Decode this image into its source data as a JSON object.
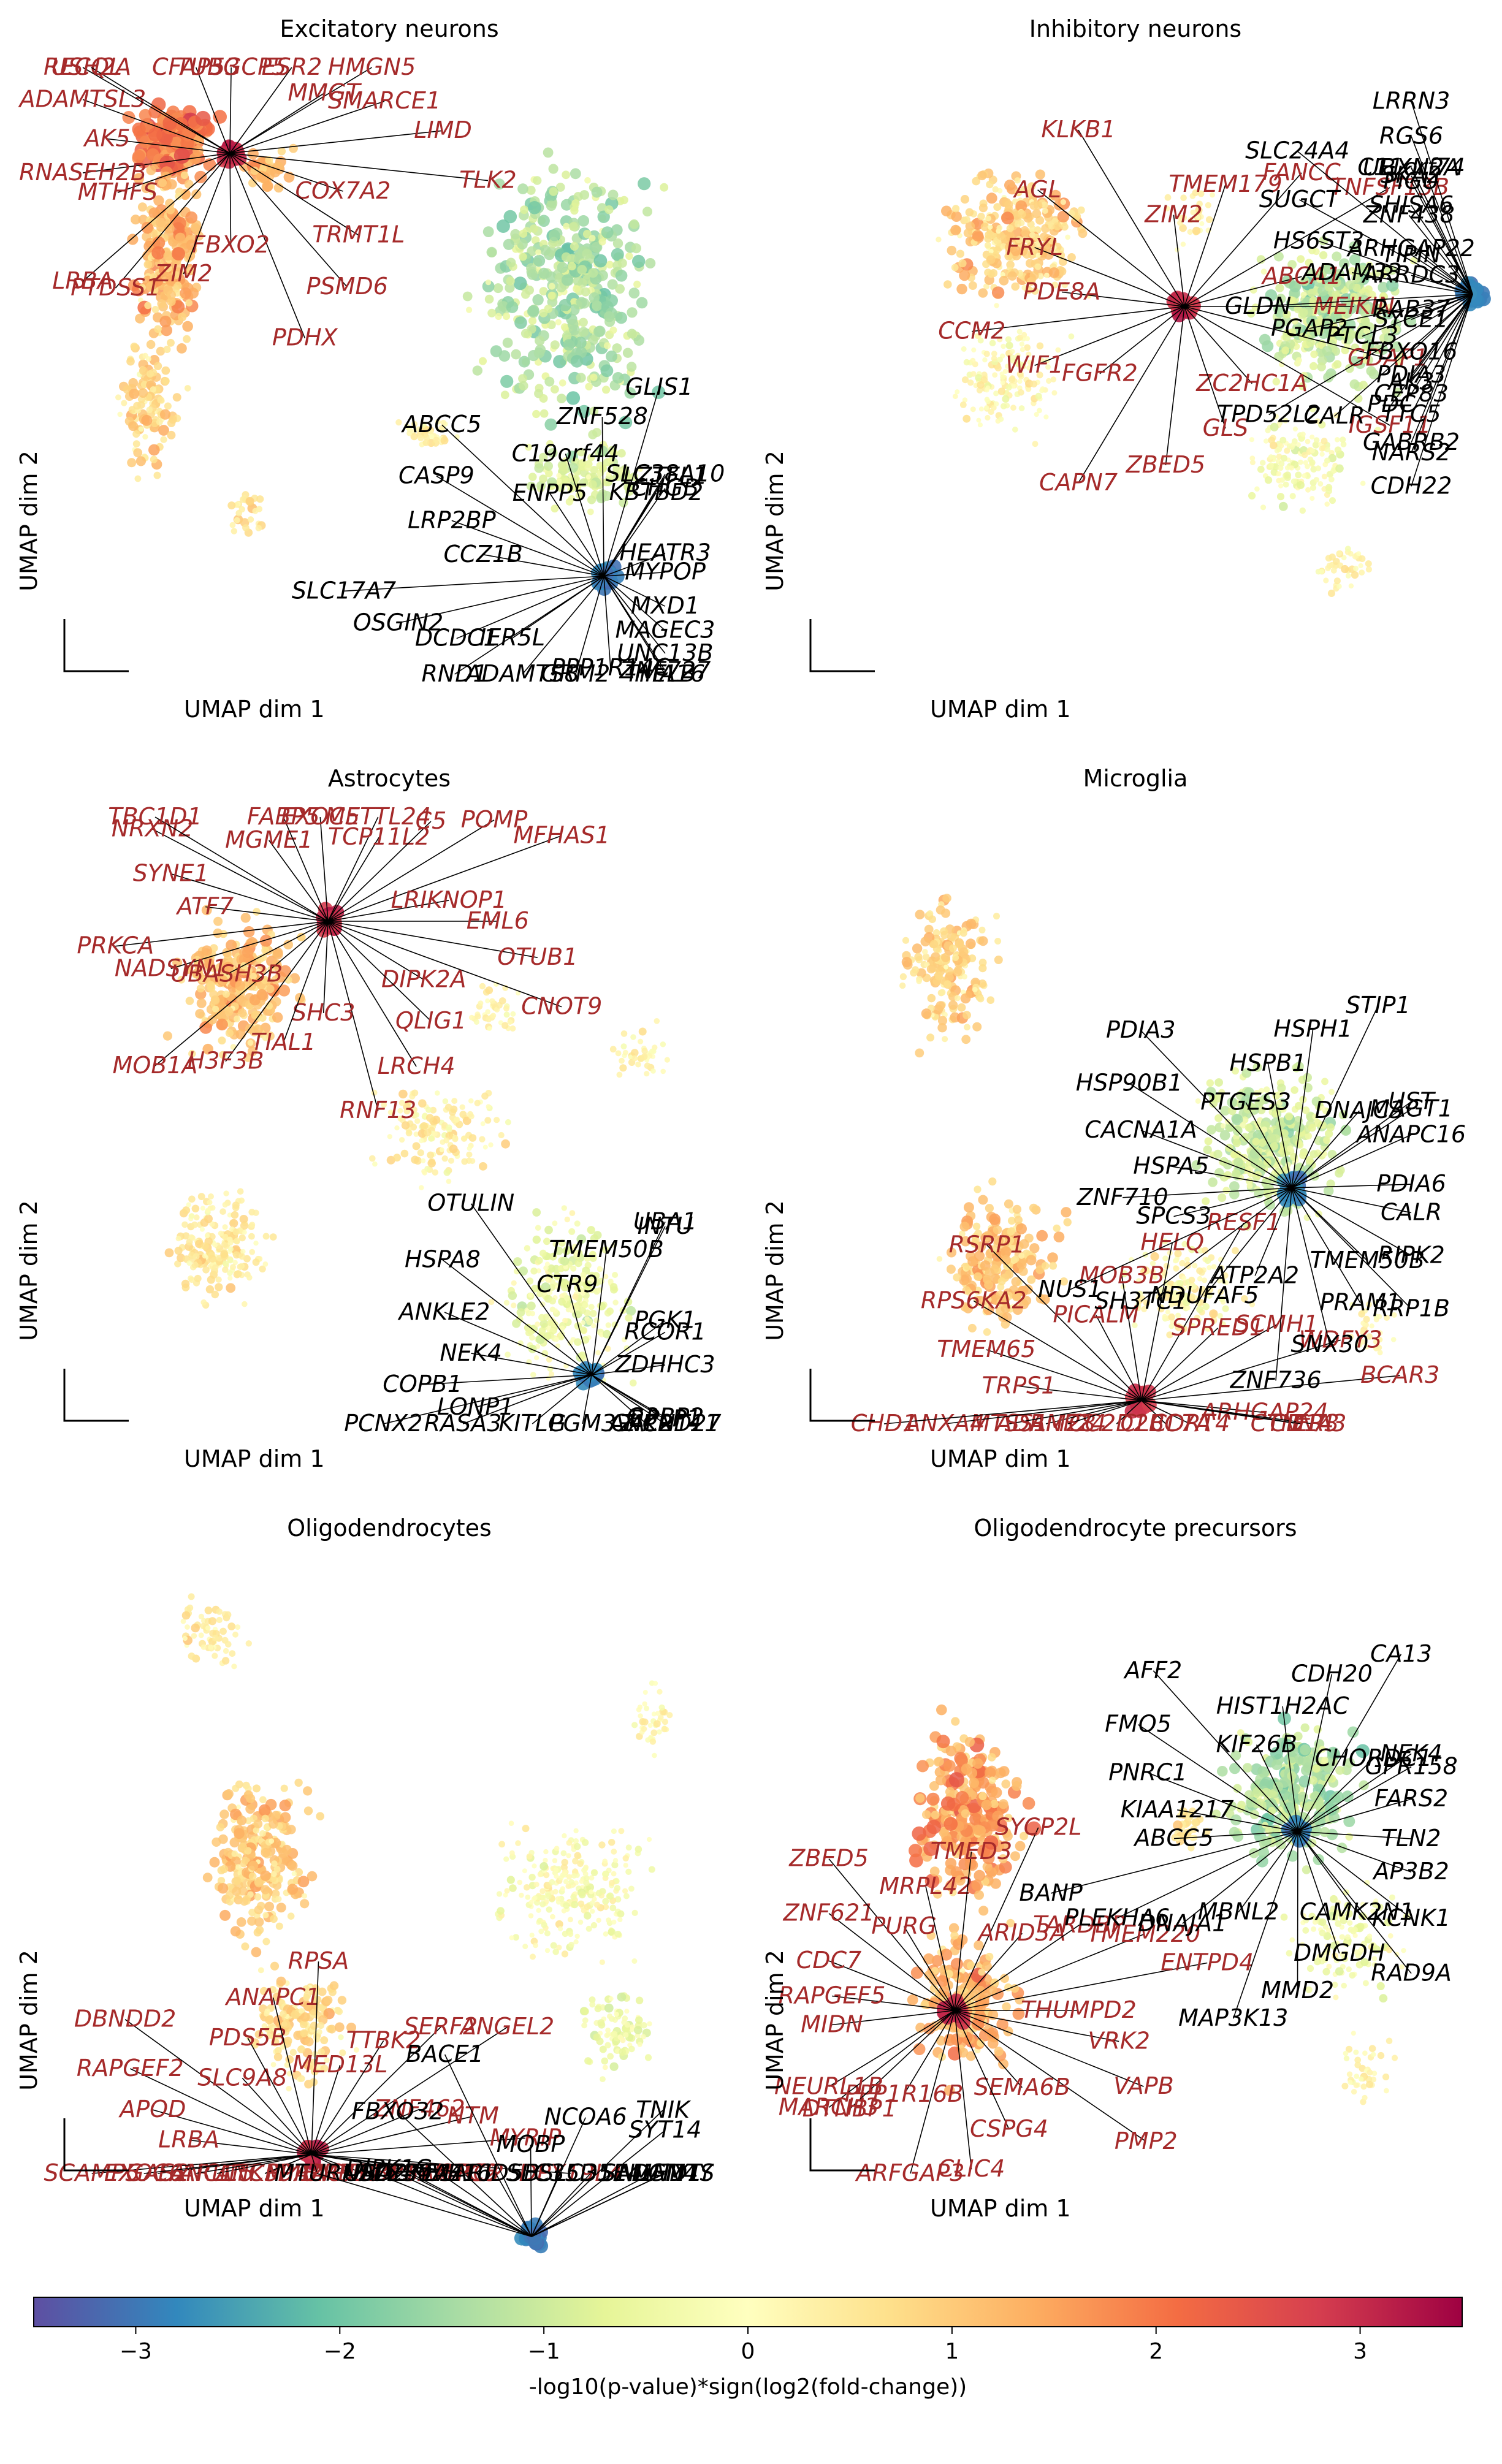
{
  "colors": {
    "up_label": "#a52a2a",
    "down_label": "#000000",
    "line": "#000000"
  },
  "colorbar": {
    "label": "-log10(p-value)*sign(log2(fold-change))",
    "ticks": [
      -3,
      -2,
      -1,
      0,
      1,
      2,
      3
    ],
    "range": [
      -3.5,
      3.5
    ],
    "colormap": "Spectral_r"
  },
  "chart_data": [
    {
      "type": "scatter",
      "title": "Excitatory neurons",
      "xlabel": "UMAP dim 1",
      "ylabel": "UMAP dim 2",
      "up_genes": [
        "AK5",
        "ADAMTSL3",
        "RECQL",
        "USH2A",
        "CFAP53",
        "TUBGCP5",
        "ESR2",
        "HMGN5",
        "MMGT",
        "SMARCE1",
        "LIMD",
        "TLK2",
        "COX7A2",
        "TRMT1L",
        "PSMD6",
        "PDHX",
        "FBXO2",
        "ZIM2",
        "PTDSS1",
        "LRBA",
        "MTHFS",
        "RNASEH2B"
      ],
      "down_genes": [
        "CCZ1B",
        "LRP2BP",
        "CASP9",
        "ABCC5",
        "ENPP5",
        "C19orf44",
        "ZNF528",
        "GLIS1",
        "KBTBD2",
        "LZTFL1",
        "SLC38A10",
        "CHGB",
        "HEATR3",
        "MYPOP",
        "MXD1",
        "UNC13B",
        "MAGEC3",
        "ZNF727",
        "TMA16",
        "HELB",
        "PPP1R14C",
        "GRM2",
        "ADAMTS8",
        "RND1",
        "IER5L",
        "DCDC1",
        "OSGIN2",
        "SLC17A7"
      ]
    },
    {
      "type": "scatter",
      "title": "Inhibitory neurons",
      "xlabel": "UMAP dim 1",
      "ylabel": "UMAP dim 2",
      "up_genes": [
        "PDE8A",
        "FRYL",
        "AGL",
        "KLKB1",
        "ZIM2",
        "TMEM179",
        "FANCC",
        "TNFSF13B",
        "ABCA1",
        "MEIKIN",
        "GDAP1",
        "IGSF11",
        "ZC2HC1A",
        "GLS",
        "ZBED5",
        "CAPN7",
        "FGFR2",
        "WIF1",
        "CCM2"
      ],
      "down_genes": [
        "ADAM33",
        "HS6ST3",
        "SUGCT",
        "SLC24A4",
        "ZNF438",
        "SKA2",
        "RGS6",
        "LRRN3",
        "SHISA6",
        "PIGU",
        "UBXN2A",
        "C11orf74",
        "ARHGAP22",
        "TIPIN",
        "ARRDC3",
        "RAB37",
        "SYCE1",
        "FBXO16",
        "CEP83",
        "GABRB2",
        "PDIA3",
        "TTC5",
        "NARS2",
        "CDH22",
        "AK3",
        "PDC",
        "CALR",
        "TPD52L2",
        "PTCL3",
        "PGAP2",
        "GLDN"
      ]
    },
    {
      "type": "scatter",
      "title": "Astrocytes",
      "xlabel": "UMAP dim 1",
      "ylabel": "UMAP dim 2",
      "up_genes": [
        "ATF7",
        "SYNE1",
        "NRXN2",
        "TBC1D1",
        "MGME1",
        "FABP5",
        "EXOC5",
        "METTL24",
        "TCP11L2",
        "C5",
        "POMP",
        "MFHAS1",
        "LRIKNOP1",
        "EML6",
        "OTUB1",
        "CNOT9",
        "DIPK2A",
        "QLIG1",
        "LRCH4",
        "RNF13",
        "SHC3",
        "TIAL1",
        "H3F3B",
        "MOB1A",
        "UBASH3B",
        "NADSYN1",
        "PRKCA"
      ],
      "down_genes": [
        "NEK4",
        "ANKLE2",
        "HSPA8",
        "OTULIN",
        "CTR9",
        "TMEM50B",
        "INTU",
        "UBA1",
        "PGK1",
        "RCOR1",
        "ZDHHC3",
        "G3BP2",
        "RPLP1",
        "GALNT11",
        "ANKRD27",
        "ZIC2",
        "PGM3",
        "KITLG",
        "RASA3",
        "PCNX2",
        "LONP1",
        "COPB1"
      ]
    },
    {
      "type": "scatter",
      "title": "Microglia",
      "xlabel": "UMAP dim 1",
      "ylabel": "UMAP dim 2",
      "up_genes": [
        "TRPS1",
        "TMEM65",
        "RPS6KA2",
        "RSRP1",
        "PICALM",
        "MOB3B",
        "HELQ",
        "RESF1",
        "SPRED1",
        "SCMH1",
        "WDFY3",
        "BCAR3",
        "ARHGAP24",
        "CTNNA3",
        "IER3",
        "CD14",
        "CDRT4",
        "CLEC7A",
        "CC2D2B",
        "ADAM28",
        "RNF24",
        "MTSS1",
        "ANXA4",
        "CHD1"
      ],
      "down_genes": [
        "HSPA5",
        "CACNA1A",
        "HSP90B1",
        "PDIA3",
        "PTGES3",
        "HSPB1",
        "HSPH1",
        "STIP1",
        "DNAJC3",
        "UST",
        "MAGT1",
        "ANAPC16",
        "PDIA6",
        "CALR",
        "RIPK2",
        "RRP1B",
        "TMEM50B",
        "PRAM1",
        "SNX30",
        "ZNF736",
        "ATP2A2",
        "NDUFAF5",
        "SH3TC1",
        "NUS1",
        "SPCS3",
        "ZNF710"
      ]
    },
    {
      "type": "scatter",
      "title": "Oligodendrocytes",
      "xlabel": "UMAP dim 1",
      "ylabel": "UMAP dim 2",
      "up_genes": [
        "LRBA",
        "APOD",
        "RAPGEF2",
        "DBNDD2",
        "SLC9A8",
        "PDS5B",
        "ANAPC1",
        "RPSA",
        "MED13L",
        "TTBK2",
        "SERF2",
        "ANGEL2",
        "ZNF462",
        "NTM",
        "MYRIP",
        "DPY19L4",
        "LSAMP",
        "TMTC2",
        "ERC2",
        "GPC5",
        "AGTPBP1",
        "BMPR1A",
        "PPP2R5E",
        "TTC39A",
        "ANKMY1",
        "ARL15",
        "GAS2",
        "SCAMP5",
        "FANCL",
        "EXOC6"
      ],
      "down_genes": [
        "SLC30A4",
        "DIPK1C",
        "FBXO32",
        "BACE1",
        "MOBP",
        "NCOA6",
        "TNIK",
        "SYT14",
        "SAMHD1",
        "UTY",
        "NLGN4Y",
        "ADAMTS",
        "SLC35E4",
        "SLC35D1",
        "ARID5B",
        "ADHFE1",
        "ZFYVE16",
        "UBA2",
        "MTURN"
      ]
    },
    {
      "type": "scatter",
      "title": "Oligodendrocyte precursors",
      "xlabel": "UMAP dim 1",
      "ylabel": "UMAP dim 2",
      "up_genes": [
        "RAPGEF5",
        "CDC7",
        "ZNF621",
        "ZBED5",
        "PURG",
        "MRPL42",
        "TMED3",
        "SYCP2L",
        "ARID3A",
        "TARDBP",
        "TMEM220",
        "ENTPD4",
        "THUMPD2",
        "VRK2",
        "VAPB",
        "PMP2",
        "SEMA6B",
        "CSPG4",
        "CLIC4",
        "ARFGAP3",
        "PPP1R16B",
        "DTNBP1",
        "MARCH3",
        "NEURL1B",
        "MIDN"
      ],
      "down_genes": [
        "KIAA1217",
        "PNRC1",
        "FMO5",
        "AFF2",
        "KIF26B",
        "HIST1H2AC",
        "CDH20",
        "CA13",
        "CHORDC1",
        "NEK4",
        "GPR158",
        "FARS2",
        "TLN2",
        "AP3B2",
        "KCNK1",
        "RAD9A",
        "CAMK2N1",
        "DMGDH",
        "MMD2",
        "MAP3K13",
        "MBNL2",
        "DNAJA1",
        "PLEKHA6",
        "BANP",
        "ABCC5"
      ]
    }
  ]
}
